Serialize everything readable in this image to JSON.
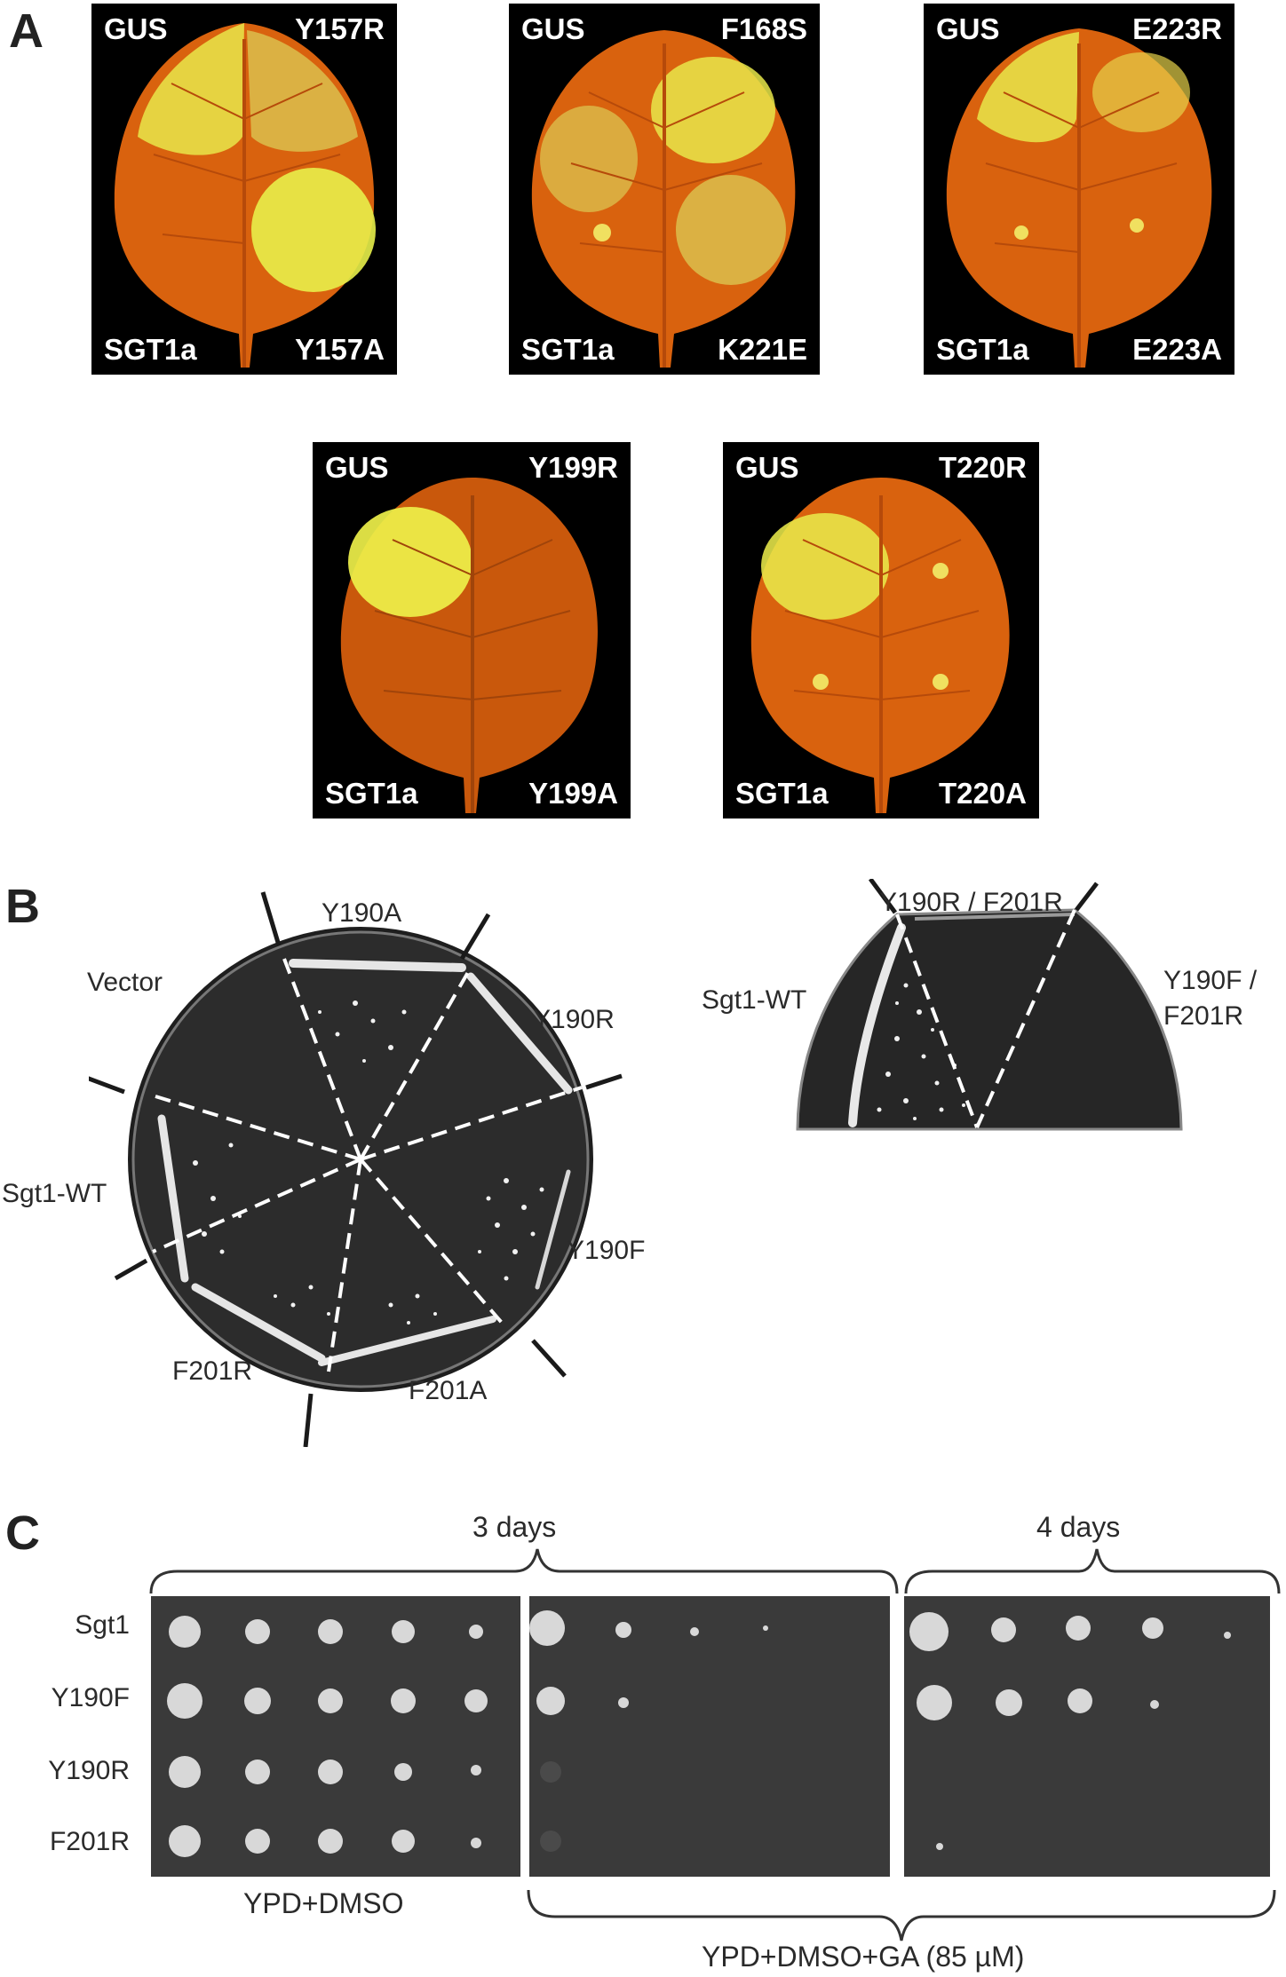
{
  "panel_a": {
    "letter": "A",
    "leaves": [
      {
        "tl": "GUS",
        "tr": "Y157R",
        "bl": "SGT1a",
        "br": "Y157A"
      },
      {
        "tl": "GUS",
        "tr": "F168S",
        "bl": "SGT1a",
        "br": "K221E"
      },
      {
        "tl": "GUS",
        "tr": "E223R",
        "bl": "SGT1a",
        "br": "E223A"
      },
      {
        "tl": "GUS",
        "tr": "Y199R",
        "bl": "SGT1a",
        "br": "Y199A"
      },
      {
        "tl": "GUS",
        "tr": "T220R",
        "bl": "SGT1a",
        "br": "T220A"
      }
    ]
  },
  "panel_b": {
    "letter": "B",
    "plate1_labels": {
      "y190a": "Y190A",
      "vector": "Vector",
      "y190r": "Y190R",
      "sgt1wt": "Sgt1-WT",
      "y190f": "Y190F",
      "f201r": "F201R",
      "f201a": "F201A"
    },
    "plate2_labels": {
      "sgt1wt": "Sgt1-WT",
      "y190r_f201r": "Y190R / F201R",
      "y190f_f201r_line1": "Y190F /",
      "y190f_f201r_line2": "F201R"
    }
  },
  "panel_c": {
    "letter": "C",
    "rows": [
      "Sgt1",
      "Y190F",
      "Y190R",
      "F201R"
    ],
    "top_brace_1": "3 days",
    "top_brace_2": "4 days",
    "bottom_label_1": "YPD+DMSO",
    "bottom_label_2": "YPD+DMSO+GA (85 µM)"
  },
  "colors": {
    "leaf_orange": "#d9620e",
    "lesion_yellow": "#e8e84a",
    "plate_dark": "#2b2b2b",
    "spot_bg": "#3a3a3a"
  }
}
